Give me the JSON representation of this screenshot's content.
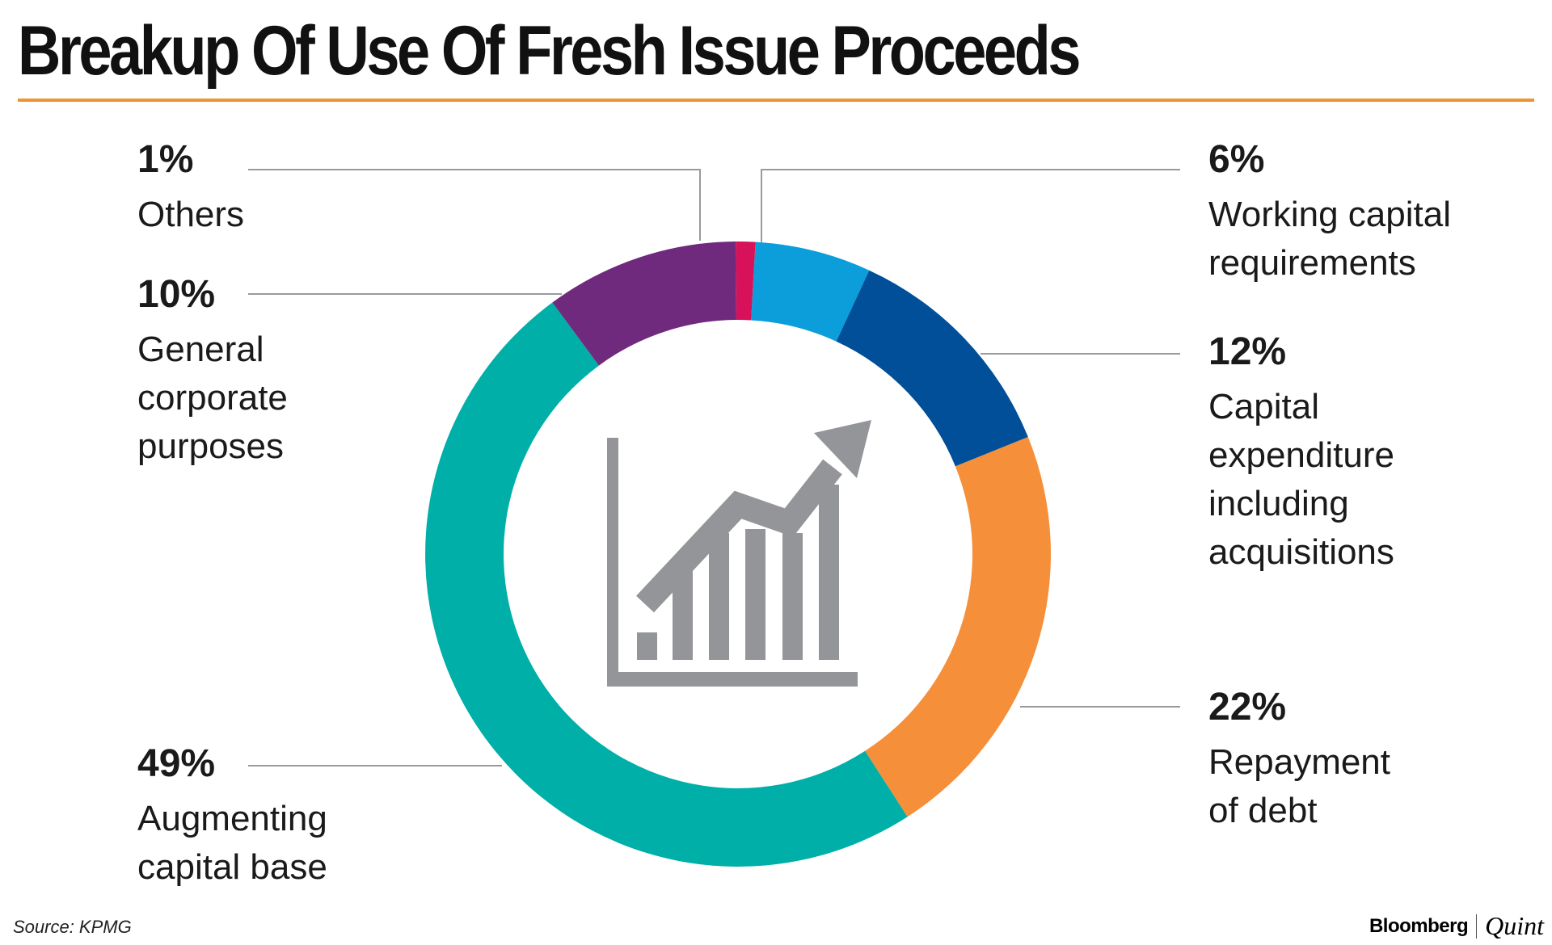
{
  "title": "Breakup Of Use Of Fresh Issue Proceeds",
  "source": "Source: KPMG",
  "brand": {
    "primary": "Bloomberg",
    "secondary": "Quint"
  },
  "colors": {
    "rule": "#F0922F",
    "leader": "#9a9a9a",
    "icon": "#939598",
    "text": "#1a1a1a"
  },
  "center_icon": "bar-chart-growth-icon",
  "chart_data": {
    "type": "pie",
    "donut": true,
    "title": "Breakup Of Use Of Fresh Issue Proceeds",
    "units": "%",
    "slices": [
      {
        "key": "working-capital",
        "pct_label": "6%",
        "value": 6,
        "name_lines": [
          "Working capital",
          "requirements"
        ],
        "color": "#0C9DDB"
      },
      {
        "key": "capital-expenditure",
        "pct_label": "12%",
        "value": 12,
        "name_lines": [
          "Capital",
          "expenditure",
          "including",
          "acquisitions"
        ],
        "color": "#004F98"
      },
      {
        "key": "repayment-of-debt",
        "pct_label": "22%",
        "value": 22,
        "name_lines": [
          "Repayment",
          "of debt"
        ],
        "color": "#F58F3A"
      },
      {
        "key": "augmenting-capital",
        "pct_label": "49%",
        "value": 49,
        "name_lines": [
          "Augmenting",
          "capital base"
        ],
        "color": "#00AFA8"
      },
      {
        "key": "general-corporate",
        "pct_label": "10%",
        "value": 10,
        "name_lines": [
          "General",
          "corporate",
          "purposes"
        ],
        "color": "#6F2A7D"
      },
      {
        "key": "others",
        "pct_label": "1%",
        "value": 1,
        "name_lines": [
          "Others"
        ],
        "color": "#D7125A"
      }
    ]
  }
}
